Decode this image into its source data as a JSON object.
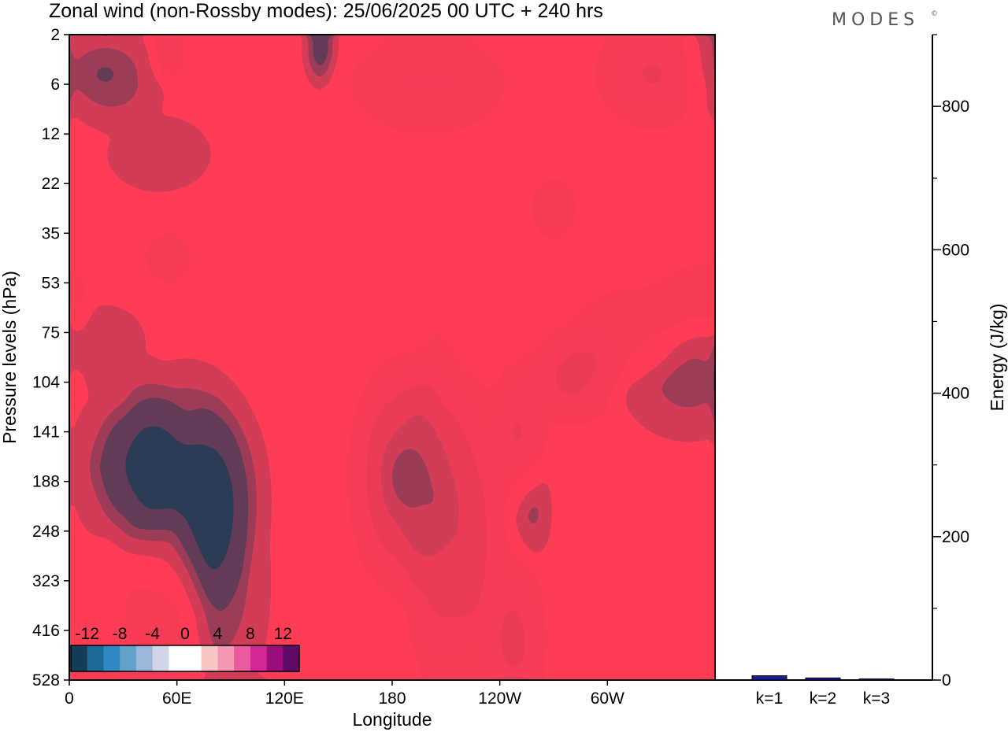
{
  "header": {
    "title": "Zonal wind (non-Rossby modes):  25/06/2025  00 UTC  + 240 hrs",
    "logo": "MODES",
    "logo_mark": "©"
  },
  "colors": {
    "levels": [
      -12,
      -10,
      -8,
      -6,
      -4,
      -2,
      0,
      2,
      4,
      6,
      8,
      10,
      12
    ],
    "palette": [
      "#163d57",
      "#1b6a97",
      "#2e88c3",
      "#63a0cc",
      "#9db5d9",
      "#d3d6e8",
      "#ffffff",
      "#ffffff",
      "#f9c6c6",
      "#f698b5",
      "#ea5b9d",
      "#d12895",
      "#9b0d7a",
      "#5e0a66"
    ],
    "bar_color": "#1a1a99"
  },
  "chart_data": [
    {
      "type": "heatmap",
      "title": "Zonal wind (non-Rossby modes):  25/06/2025  00 UTC  + 240 hrs",
      "xlabel": "Longitude",
      "ylabel": "Pressure levels (hPa)",
      "x_ticks": [
        "0",
        "60E",
        "120E",
        "180",
        "120W",
        "60W"
      ],
      "x_tick_degrees": [
        0,
        60,
        120,
        180,
        240,
        300
      ],
      "xlim": [
        0,
        360
      ],
      "y_ticks": [
        "2",
        "6",
        "12",
        "22",
        "35",
        "53",
        "75",
        "104",
        "141",
        "188",
        "248",
        "323",
        "416",
        "528"
      ],
      "colorbar": {
        "tick_labels": [
          "-12",
          "-8",
          "-4",
          "0",
          "4",
          "8",
          "12"
        ],
        "levels": [
          -12,
          -10,
          -8,
          -6,
          -4,
          -2,
          0,
          2,
          4,
          6,
          8,
          10,
          12
        ]
      },
      "features": [
        {
          "lon": 65,
          "level_index": 8.9,
          "value": -10,
          "spread_lon": 26,
          "spread_lev": 1.4
        },
        {
          "lon": 40,
          "level_index": 8.6,
          "value": -8,
          "spread_lon": 14,
          "spread_lev": 1.0
        },
        {
          "lon": 80,
          "level_index": 10.3,
          "value": -7,
          "spread_lon": 12,
          "spread_lev": 1.6
        },
        {
          "lon": 15,
          "level_index": 8.7,
          "value": -5,
          "spread_lon": 10,
          "spread_lev": 1.0
        },
        {
          "lon": 95,
          "level_index": 11.0,
          "value": -4,
          "spread_lon": 14,
          "spread_lev": 1.8
        },
        {
          "lon": 20,
          "level_index": 6.2,
          "value": -4,
          "spread_lon": 18,
          "spread_lev": 0.6
        },
        {
          "lon": 20,
          "level_index": 0.8,
          "value": -7,
          "spread_lon": 20,
          "spread_lev": 0.6
        },
        {
          "lon": 140,
          "level_index": 0.3,
          "value": -9,
          "spread_lon": 6,
          "spread_lev": 0.5
        },
        {
          "lon": 355,
          "level_index": 0.6,
          "value": -6,
          "spread_lon": 10,
          "spread_lev": 0.7
        },
        {
          "lon": 50,
          "level_index": 2.4,
          "value": -3,
          "spread_lon": 30,
          "spread_lev": 0.8
        },
        {
          "lon": 345,
          "level_index": 7.0,
          "value": -6,
          "spread_lon": 25,
          "spread_lev": 0.8
        },
        {
          "lon": 257,
          "level_index": 9.6,
          "value": -6,
          "spread_lon": 8,
          "spread_lev": 0.7
        },
        {
          "lon": 185,
          "level_index": 8.9,
          "value": 12,
          "spread_lon": 17,
          "spread_lev": 1.4
        },
        {
          "lon": 205,
          "level_index": 9.3,
          "value": 8,
          "spread_lon": 12,
          "spread_lev": 2.0
        },
        {
          "lon": 225,
          "level_index": 9.3,
          "value": 7,
          "spread_lon": 10,
          "spread_lev": 1.5
        },
        {
          "lon": 250,
          "level_index": 8.0,
          "value": 7,
          "spread_lon": 10,
          "spread_lev": 0.9
        },
        {
          "lon": 280,
          "level_index": 6.9,
          "value": 8,
          "spread_lon": 16,
          "spread_lev": 0.6
        },
        {
          "lon": 310,
          "level_index": 6.0,
          "value": 5,
          "spread_lon": 20,
          "spread_lev": 0.6
        },
        {
          "lon": 350,
          "level_index": 5.3,
          "value": 4,
          "spread_lon": 18,
          "spread_lev": 0.5
        },
        {
          "lon": 225,
          "level_index": 11.6,
          "value": 5,
          "spread_lon": 22,
          "spread_lev": 1.5
        },
        {
          "lon": 250,
          "level_index": 12.3,
          "value": 6,
          "spread_lon": 10,
          "spread_lev": 1.0
        },
        {
          "lon": 200,
          "level_index": 1.0,
          "value": 5,
          "spread_lon": 30,
          "spread_lev": 0.7
        },
        {
          "lon": 325,
          "level_index": 0.8,
          "value": 7,
          "spread_lon": 20,
          "spread_lev": 0.7
        },
        {
          "lon": 55,
          "level_index": 0.3,
          "value": 6,
          "spread_lon": 6,
          "spread_lev": 0.4
        },
        {
          "lon": 55,
          "level_index": 4.5,
          "value": 3,
          "spread_lon": 12,
          "spread_lev": 0.5
        },
        {
          "lon": 270,
          "level_index": 3.5,
          "value": 3,
          "spread_lon": 12,
          "spread_lev": 0.6
        },
        {
          "lon": 50,
          "level_index": 12.0,
          "value": 4,
          "spread_lon": 15,
          "spread_lev": 1.2
        },
        {
          "lon": 5,
          "level_index": 5.3,
          "value": 4,
          "spread_lon": 4,
          "spread_lev": 0.4
        }
      ]
    },
    {
      "type": "bar",
      "categories": [
        "k=1",
        "k=2",
        "k=3"
      ],
      "values": [
        6,
        3,
        1.5
      ],
      "ylabel": "Energy (J/kg)",
      "ylim": [
        0,
        900
      ],
      "y_ticks": [
        0,
        200,
        400,
        600,
        800
      ],
      "y_minor_step": 100
    }
  ]
}
